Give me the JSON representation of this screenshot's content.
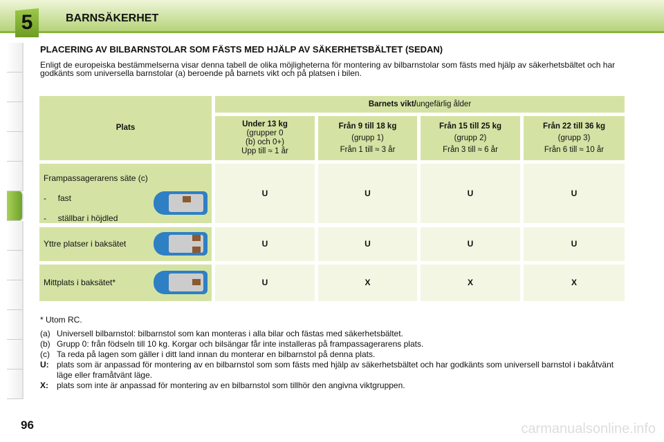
{
  "header": {
    "chapter": "5",
    "title": "BARNSÄKERHET"
  },
  "heading": "PLACERING AV BILBARNSTOLAR SOM FÄSTS MED HJÄLP AV SÄKERHETSBÄLTET (SEDAN)",
  "intro": "Enligt de europeiska bestämmelserna visar denna tabell de olika möjligheterna för montering av bilbarnstolar som fästs med hjälp av säkerhetsbältet och har godkänts som universella barnstolar (a) beroende på barnets vikt och på platsen i bilen.",
  "table": {
    "plats": "Plats",
    "group_header_bold": "Barnets vikt/",
    "group_header_rest": "ungefärlig ålder",
    "columns": [
      {
        "l1": "Under 13 kg",
        "l2": "(grupper 0",
        "l3": "(b) och 0+)",
        "l4": "Upp till ≈ 1 år"
      },
      {
        "l1": "Från 9 till 18 kg",
        "l2": "(grupp 1)",
        "l3": "Från 1 till ≈ 3 år"
      },
      {
        "l1": "Från 15 till 25 kg",
        "l2": "(grupp 2)",
        "l3": "Från 3 till ≈ 6 år"
      },
      {
        "l1": "Från 22 till 36 kg",
        "l2": "(grupp 3)",
        "l3": "Från 6 till ≈ 10 år"
      }
    ],
    "rows": [
      {
        "label": "Frampassagerarens säte (c)",
        "sub1": "-     fast",
        "sub2": "-     ställbar i höjdled",
        "values": [
          "U",
          "U",
          "U",
          "U"
        ]
      },
      {
        "label": "Yttre platser i baksätet",
        "values": [
          "U",
          "U",
          "U",
          "U"
        ]
      },
      {
        "label": "Mittplats i baksätet*",
        "values": [
          "U",
          "X",
          "X",
          "X"
        ]
      }
    ]
  },
  "notes": {
    "star": "* Utom RC.",
    "items": [
      {
        "k": "(a)",
        "t": "Universell bilbarnstol: bilbarnstol som kan monteras i alla bilar och fästas med säkerhetsbältet."
      },
      {
        "k": "(b)",
        "t": "Grupp 0: från födseln till 10 kg. Korgar och bilsängar får inte installeras på frampassagerarens plats."
      },
      {
        "k": "(c)",
        "t": "Ta reda på lagen som gäller i ditt land innan du monterar en bilbarnstol på denna plats."
      },
      {
        "k": "U:",
        "t": "plats som är anpassad för montering av en bilbarnstol som som fästs med hjälp av säkerhetsbältet och har godkänts som universell barnstol i bakåtvänt läge eller framåtvänt läge."
      },
      {
        "k": "X:",
        "t": "plats som inte är anpassad för montering av en bilbarnstol som tillhör den angivna viktgruppen."
      }
    ]
  },
  "page_number": "96",
  "watermark": "carmanualsonline.info"
}
